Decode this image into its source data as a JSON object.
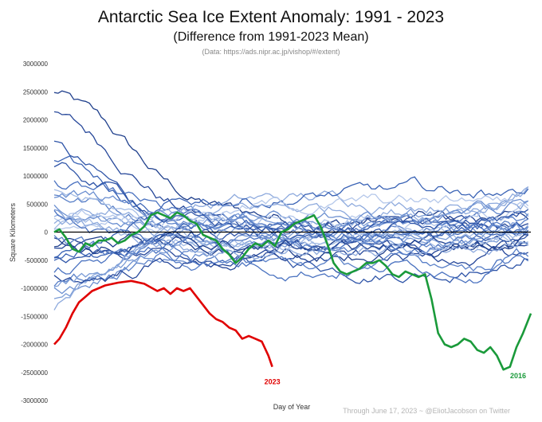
{
  "title": "Antarctic Sea Ice Extent Anomaly: 1991 - 2023",
  "subtitle": "(Difference from 1991-2023 Mean)",
  "source": "(Data: https://ads.nipr.ac.jp/vishop/#/extent)",
  "footer": "Through June 17, 2023 ~ @EliotJacobson on Twitter",
  "chart_data": {
    "type": "line",
    "xlabel": "Day of Year",
    "ylabel": "Square Kilometers",
    "ylim": [
      -3000000,
      3000000
    ],
    "yticks": [
      3000000,
      2500000,
      2000000,
      1500000,
      1000000,
      500000,
      0,
      -500000,
      -1000000,
      -1500000,
      -2000000,
      -2500000,
      -3000000
    ],
    "xlim": [
      1,
      366
    ],
    "grid": false,
    "zero_line": true,
    "highlight_series": [
      {
        "name": "2023",
        "color": "#e00000",
        "label_color": "#e00000",
        "x": [
          1,
          5,
          10,
          15,
          20,
          25,
          30,
          40,
          50,
          60,
          70,
          80,
          85,
          90,
          95,
          100,
          105,
          110,
          115,
          120,
          125,
          130,
          135,
          140,
          145,
          150,
          155,
          160,
          165,
          168
        ],
        "y": [
          -2000000,
          -1900000,
          -1700000,
          -1450000,
          -1250000,
          -1150000,
          -1050000,
          -950000,
          -900000,
          -870000,
          -920000,
          -1050000,
          -1000000,
          -1100000,
          -1000000,
          -1050000,
          -1000000,
          -1150000,
          -1300000,
          -1450000,
          -1550000,
          -1600000,
          -1700000,
          -1750000,
          -1900000,
          -1850000,
          -1900000,
          -1950000,
          -2200000,
          -2400000
        ]
      },
      {
        "name": "2016",
        "color": "#1a9a3a",
        "label_color": "#1a9a3a",
        "x": [
          1,
          5,
          10,
          15,
          20,
          25,
          30,
          35,
          40,
          45,
          50,
          55,
          60,
          65,
          70,
          75,
          80,
          85,
          90,
          95,
          100,
          105,
          110,
          115,
          120,
          125,
          130,
          135,
          140,
          145,
          150,
          155,
          160,
          165,
          170,
          175,
          180,
          185,
          190,
          195,
          200,
          205,
          210,
          215,
          220,
          225,
          230,
          235,
          240,
          245,
          250,
          255,
          260,
          265,
          270,
          275,
          280,
          285,
          290,
          295,
          300,
          305,
          310,
          315,
          320,
          325,
          330,
          335,
          340,
          345,
          350,
          355,
          360,
          366
        ],
        "y": [
          0,
          50000,
          -100000,
          -300000,
          -350000,
          -200000,
          -250000,
          -150000,
          -150000,
          -100000,
          -200000,
          -150000,
          -50000,
          0,
          100000,
          300000,
          350000,
          300000,
          250000,
          350000,
          300000,
          200000,
          150000,
          -50000,
          -100000,
          -150000,
          -300000,
          -400000,
          -550000,
          -450000,
          -300000,
          -200000,
          -250000,
          -150000,
          -250000,
          0,
          50000,
          150000,
          200000,
          250000,
          300000,
          100000,
          -200000,
          -550000,
          -700000,
          -750000,
          -700000,
          -650000,
          -550000,
          -550000,
          -500000,
          -600000,
          -750000,
          -800000,
          -700000,
          -750000,
          -800000,
          -750000,
          -1200000,
          -1800000,
          -2000000,
          -2050000,
          -2000000,
          -1900000,
          -1950000,
          -2100000,
          -2150000,
          -2050000,
          -2200000,
          -2450000,
          -2400000,
          -2050000,
          -1800000,
          -1450000
        ]
      }
    ]
  }
}
